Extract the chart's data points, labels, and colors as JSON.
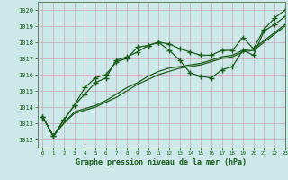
{
  "xlabel": "Graphe pression niveau de la mer (hPa)",
  "background_color": "#cce8e8",
  "grid_color": "#b0c8c8",
  "line_color": "#1a5c1a",
  "xlim": [
    -0.5,
    23
  ],
  "ylim": [
    1011.5,
    1020.5
  ],
  "yticks": [
    1012,
    1013,
    1014,
    1015,
    1016,
    1017,
    1018,
    1019,
    1020
  ],
  "xticks": [
    0,
    1,
    2,
    3,
    4,
    5,
    6,
    7,
    8,
    9,
    10,
    11,
    12,
    13,
    14,
    15,
    16,
    17,
    18,
    19,
    20,
    21,
    22,
    23
  ],
  "line1_x": [
    0,
    1,
    2,
    3,
    4,
    5,
    6,
    7,
    8,
    9,
    10,
    11,
    12,
    13,
    14,
    15,
    16,
    17,
    18,
    19,
    20,
    21,
    22,
    23
  ],
  "line1_y": [
    1013.4,
    1012.2,
    1013.2,
    1014.1,
    1015.2,
    1015.8,
    1016.0,
    1016.8,
    1017.0,
    1017.7,
    1017.8,
    1018.0,
    1017.5,
    1016.9,
    1016.1,
    1015.9,
    1015.8,
    1016.3,
    1016.5,
    1017.5,
    1017.2,
    1018.7,
    1019.1,
    1019.6
  ],
  "line2_x": [
    0,
    1,
    2,
    3,
    4,
    5,
    6,
    7,
    8,
    9,
    10,
    11,
    12,
    13,
    14,
    15,
    16,
    17,
    18,
    19,
    20,
    21,
    22,
    23
  ],
  "line2_y": [
    1013.4,
    1012.2,
    1013.2,
    1014.1,
    1014.8,
    1015.5,
    1015.8,
    1016.9,
    1017.1,
    1017.4,
    1017.8,
    1018.0,
    1017.9,
    1017.6,
    1017.4,
    1017.2,
    1017.2,
    1017.5,
    1017.5,
    1018.3,
    1017.6,
    1018.8,
    1019.5,
    1020.0
  ],
  "line3_x": [
    0,
    1,
    2,
    3,
    4,
    5,
    6,
    7,
    8,
    9,
    10,
    11,
    12,
    13,
    14,
    15,
    16,
    17,
    18,
    19,
    20,
    21,
    22,
    23
  ],
  "line3_y": [
    1013.4,
    1012.2,
    1013.0,
    1013.6,
    1013.8,
    1014.0,
    1014.3,
    1014.6,
    1015.0,
    1015.4,
    1015.7,
    1016.0,
    1016.2,
    1016.4,
    1016.5,
    1016.6,
    1016.8,
    1017.0,
    1017.1,
    1017.4,
    1017.5,
    1018.0,
    1018.5,
    1019.0
  ],
  "line4_x": [
    0,
    1,
    2,
    3,
    4,
    5,
    6,
    7,
    8,
    9,
    10,
    11,
    12,
    13,
    14,
    15,
    16,
    17,
    18,
    19,
    20,
    21,
    22,
    23
  ],
  "line4_y": [
    1013.4,
    1012.2,
    1013.0,
    1013.7,
    1013.9,
    1014.1,
    1014.4,
    1014.8,
    1015.2,
    1015.5,
    1015.9,
    1016.2,
    1016.4,
    1016.5,
    1016.6,
    1016.7,
    1016.9,
    1017.1,
    1017.2,
    1017.5,
    1017.6,
    1018.1,
    1018.6,
    1019.1
  ]
}
